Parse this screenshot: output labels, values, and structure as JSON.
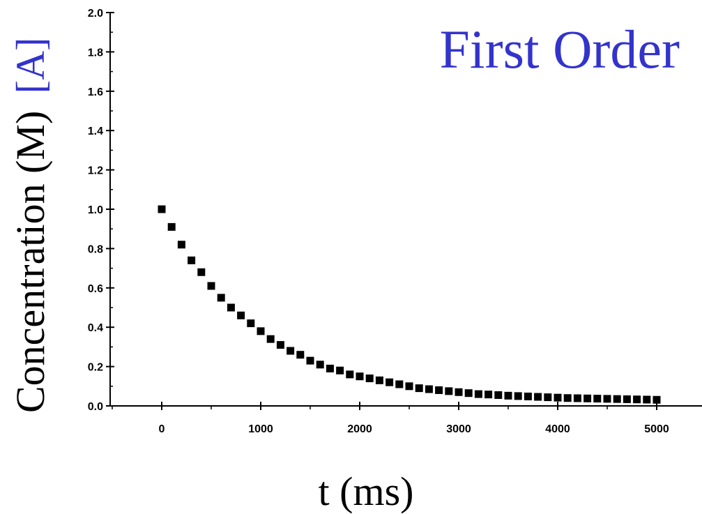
{
  "chart_data": {
    "type": "scatter",
    "title": "First Order",
    "xlabel": "t (ms)",
    "ylabel_main": "Concentration (M)",
    "ylabel_species": "[A]",
    "xlim": [
      -500,
      5300
    ],
    "ylim": [
      0,
      2.0
    ],
    "xticks": [
      0,
      1000,
      2000,
      3000,
      4000,
      5000
    ],
    "xtick_labels": [
      "0",
      "1000",
      "2000",
      "3000",
      "4000",
      "5000"
    ],
    "yticks": [
      0.0,
      0.2,
      0.4,
      0.6,
      0.8,
      1.0,
      1.2,
      1.4,
      1.6,
      1.8,
      2.0
    ],
    "ytick_labels": [
      "0.0",
      "0.2",
      "0.4",
      "0.6",
      "0.8",
      "1.0",
      "1.2",
      "1.4",
      "1.6",
      "1.8",
      "2.0"
    ],
    "grid": false,
    "colors": {
      "title": "#3333cc",
      "species": "#3333cc",
      "axis": "#000000",
      "marker": "#000000"
    },
    "series": [
      {
        "marker": "square",
        "x": [
          0,
          100,
          200,
          300,
          400,
          500,
          600,
          700,
          800,
          900,
          1000,
          1100,
          1200,
          1300,
          1400,
          1500,
          1600,
          1700,
          1800,
          1900,
          2000,
          2100,
          2200,
          2300,
          2400,
          2500,
          2600,
          2700,
          2800,
          2900,
          3000,
          3100,
          3200,
          3300,
          3400,
          3500,
          3600,
          3700,
          3800,
          3900,
          4000,
          4100,
          4200,
          4300,
          4400,
          4500,
          4600,
          4700,
          4800,
          4900,
          5000
        ],
        "y": [
          1.0,
          0.91,
          0.82,
          0.74,
          0.68,
          0.61,
          0.55,
          0.5,
          0.46,
          0.42,
          0.38,
          0.34,
          0.31,
          0.28,
          0.26,
          0.23,
          0.21,
          0.19,
          0.18,
          0.16,
          0.15,
          0.14,
          0.13,
          0.12,
          0.11,
          0.1,
          0.09,
          0.085,
          0.08,
          0.075,
          0.07,
          0.065,
          0.06,
          0.058,
          0.055,
          0.052,
          0.05,
          0.048,
          0.046,
          0.044,
          0.042,
          0.04,
          0.039,
          0.038,
          0.037,
          0.036,
          0.035,
          0.034,
          0.033,
          0.032,
          0.031
        ]
      }
    ]
  }
}
